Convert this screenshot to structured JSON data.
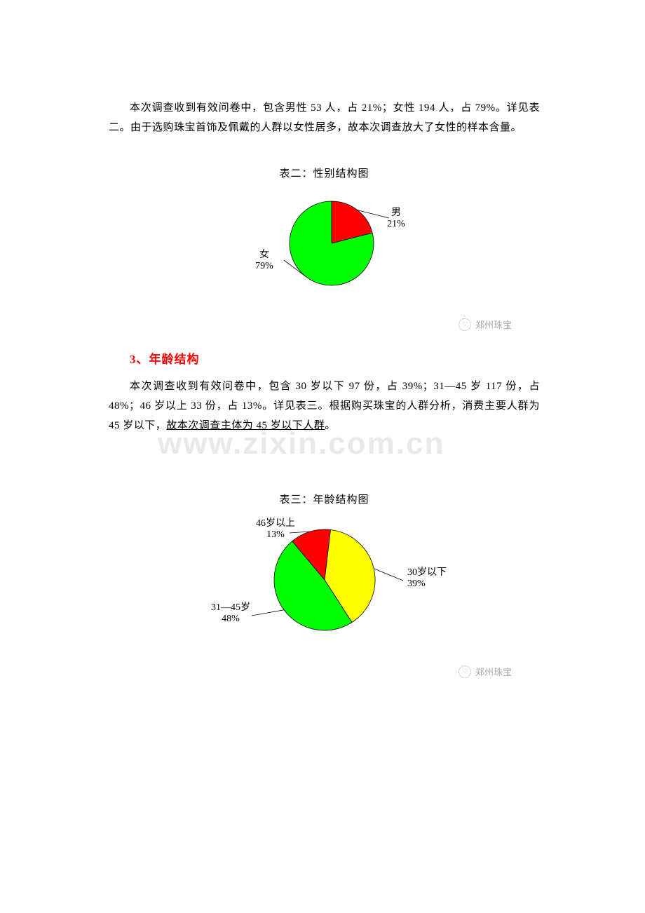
{
  "para1": "本次调查收到有效问卷中，包含男性 53 人，占 21%；女性 194 人，占 79%。详见表二。由于选购珠宝首饰及佩戴的人群以女性居多，故本次调查放大了女性的样本含量。",
  "chart1": {
    "title": "表二：性别结构图",
    "type": "pie",
    "slices": [
      {
        "label": "男",
        "value_label": "21%",
        "value": 21,
        "color": "#ff0000"
      },
      {
        "label": "女",
        "value_label": "79%",
        "value": 79,
        "color": "#00ff00"
      }
    ],
    "radius": 60,
    "bg": "#ffffff",
    "text_color": "#000000",
    "label_fontsize": 14
  },
  "logo_text": "郑州珠宝",
  "section3": {
    "num": "3、",
    "title": "年龄结构"
  },
  "para2_a": "本次调查收到有效问卷中，包含 30 岁以下 97 份，占 39%；31—45 岁 117 份，占 48%；46 岁以上 33 份，占 13%。详见表三。根据购买珠宝的人群分析，消费主要人群为 45 岁以下，",
  "para2_u": "故本次调查主体为 45 岁以下人群",
  "para2_end": "。",
  "chart2": {
    "title": "表三：年龄结构图",
    "type": "pie",
    "slices": [
      {
        "label": "30岁以下",
        "value_label": "39%",
        "value": 39,
        "color": "#ffff00"
      },
      {
        "label": "31—45岁",
        "value_label": "48%",
        "value": 48,
        "color": "#00ff00"
      },
      {
        "label": "46岁以上",
        "value_label": "13%",
        "value": 13,
        "color": "#ff0000"
      }
    ],
    "radius": 72,
    "bg": "#ffffff",
    "text_color": "#000000",
    "label_fontsize": 14
  },
  "watermark": "www.zixin.com.cn"
}
